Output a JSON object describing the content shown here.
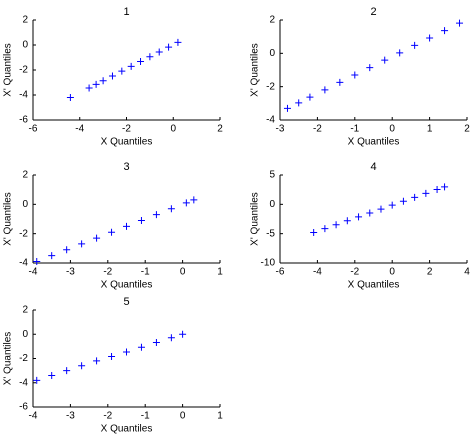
{
  "chart_data": [
    {
      "type": "scatter",
      "title": "1",
      "x_label": "X Quantiles",
      "y_label": "X' Quantiles",
      "color": "#0000ff",
      "marker": "+",
      "x": [
        -4.4,
        -3.6,
        -3.3,
        -3.0,
        -2.6,
        -2.2,
        -1.8,
        -1.4,
        -1.0,
        -0.6,
        -0.2,
        0.2
      ],
      "y": [
        -4.2,
        -3.44,
        -3.15,
        -2.86,
        -2.48,
        -2.09,
        -1.71,
        -1.32,
        -0.94,
        -0.56,
        -0.17,
        0.21
      ],
      "xlim": [
        -6,
        2
      ],
      "ylim": [
        -6,
        2
      ],
      "xticks": [
        -6,
        -4,
        -2,
        0,
        2
      ],
      "yticks": [
        -6,
        -4,
        -2,
        0,
        2
      ]
    },
    {
      "type": "scatter",
      "title": "2",
      "x_label": "X Quantiles",
      "y_label": "X' Quantiles",
      "color": "#0000ff",
      "marker": "+",
      "x": [
        -2.8,
        -2.5,
        -2.2,
        -1.8,
        -1.4,
        -1.0,
        -0.6,
        -0.2,
        0.2,
        0.6,
        1.0,
        1.4,
        1.8
      ],
      "y": [
        -3.3,
        -2.97,
        -2.63,
        -2.19,
        -1.74,
        -1.3,
        -0.86,
        -0.41,
        0.03,
        0.48,
        0.92,
        1.36,
        1.81
      ],
      "xlim": [
        -3,
        2
      ],
      "ylim": [
        -4,
        2
      ],
      "xticks": [
        -3,
        -2,
        -1,
        0,
        1,
        2
      ],
      "yticks": [
        -4,
        -2,
        0,
        2
      ]
    },
    {
      "type": "scatter",
      "title": "3",
      "x_label": "X Quantiles",
      "y_label": "X' Quantiles",
      "color": "#0000ff",
      "marker": "+",
      "x": [
        -3.9,
        -3.5,
        -3.1,
        -2.7,
        -2.3,
        -1.9,
        -1.5,
        -1.1,
        -0.7,
        -0.3,
        0.1,
        0.3
      ],
      "y": [
        -3.9,
        -3.5,
        -3.1,
        -2.7,
        -2.3,
        -1.9,
        -1.5,
        -1.1,
        -0.7,
        -0.3,
        0.1,
        0.3
      ],
      "xlim": [
        -4,
        1
      ],
      "ylim": [
        -4,
        2
      ],
      "xticks": [
        -4,
        -3,
        -2,
        -1,
        0,
        1
      ],
      "yticks": [
        -4,
        -2,
        0,
        2
      ]
    },
    {
      "type": "scatter",
      "title": "4",
      "x_label": "X Quantiles",
      "y_label": "X' Quantiles",
      "color": "#0000ff",
      "marker": "+",
      "x": [
        -4.2,
        -3.6,
        -3.0,
        -2.4,
        -1.8,
        -1.2,
        -0.6,
        0,
        0.6,
        1.2,
        1.8,
        2.4,
        2.8
      ],
      "y": [
        -4.8,
        -4.14,
        -3.47,
        -2.8,
        -2.14,
        -1.47,
        -0.81,
        -0.14,
        0.53,
        1.19,
        1.86,
        2.52,
        2.97
      ],
      "xlim": [
        -6,
        4
      ],
      "ylim": [
        -10,
        5
      ],
      "xticks": [
        -6,
        -4,
        -2,
        0,
        2,
        4
      ],
      "yticks": [
        -10,
        -5,
        0,
        5
      ]
    },
    {
      "type": "scatter",
      "title": "5",
      "x_label": "X Quantiles",
      "y_label": "X' Quantiles",
      "color": "#0000ff",
      "marker": "+",
      "x": [
        -3.9,
        -3.5,
        -3.1,
        -2.7,
        -2.3,
        -1.9,
        -1.5,
        -1.1,
        -0.7,
        -0.3,
        0
      ],
      "y": [
        -3.8,
        -3.4,
        -3.0,
        -2.6,
        -2.2,
        -1.84,
        -1.46,
        -1.07,
        -0.68,
        -0.29,
        0
      ],
      "xlim": [
        -4,
        1
      ],
      "ylim": [
        -6,
        2
      ],
      "xticks": [
        -4,
        -3,
        -2,
        -1,
        0,
        1
      ],
      "yticks": [
        -6,
        -4,
        -2,
        0,
        2
      ]
    }
  ]
}
